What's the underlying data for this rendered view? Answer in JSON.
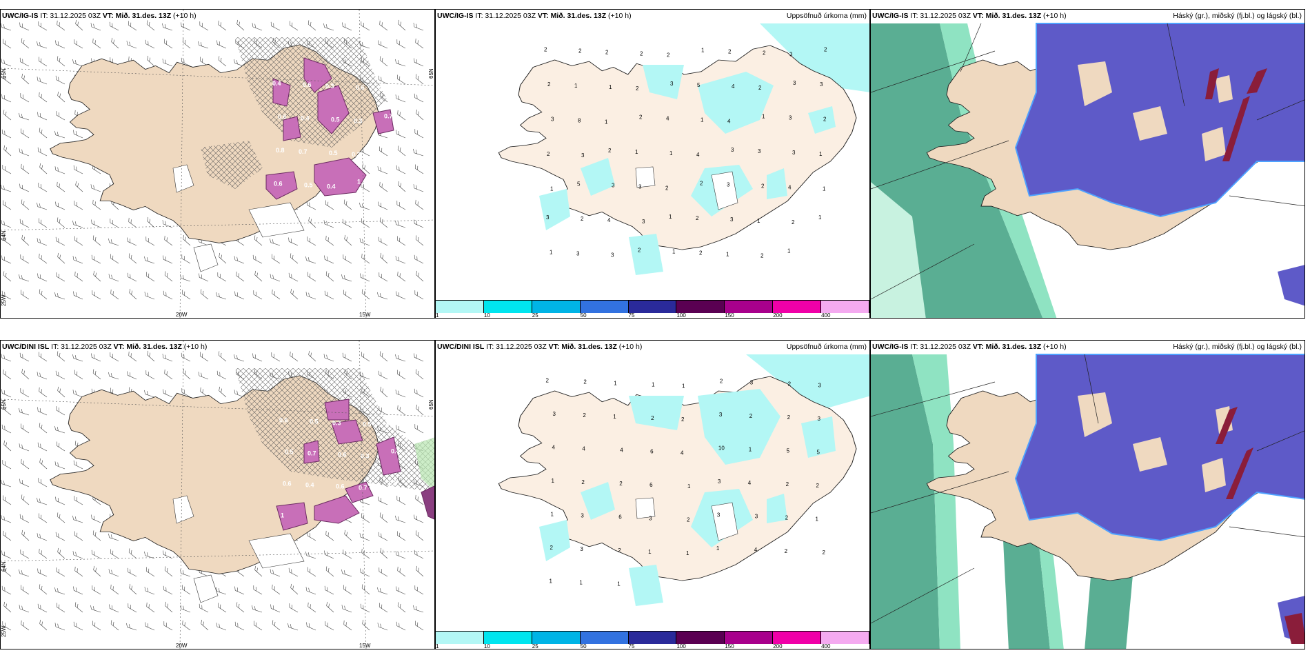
{
  "colors": {
    "land": "#efd9c0",
    "snow_land": "#fbefe3",
    "precip_light": "#b3f7f5",
    "purple": "#c86fb8",
    "high_cloud": "#5e5ac8",
    "mid_cloud": "#5aae93",
    "low_cloud": "#8fe3c2",
    "dark_red": "#8a1d3a"
  },
  "row1": {
    "wind_panel": {
      "model": "UWC/IG-IS",
      "it": "IT: 31.12.2025 03Z",
      "vt": "VT: Mið. 31.des. 13Z",
      "lead": "(+10 h)",
      "lat_labels": [
        "65N",
        "64N",
        "25W"
      ],
      "lon_labels": [
        "20W",
        "15W"
      ],
      "values": [
        "0.4",
        "0.6",
        "0.3",
        "0.6",
        "0.7",
        "0.6",
        "0.4",
        "0.5",
        "0.3",
        "0.7",
        "0.8",
        "0.7",
        "0.5",
        "0.3",
        "0.7",
        "0.6",
        "0.5",
        "0.4",
        "1"
      ]
    },
    "precip_panel": {
      "model": "UWC/IG-IS",
      "it": "IT: 31.12.2025 03Z",
      "vt": "VT: Mið. 31.des. 13Z",
      "lead": "(+10 h)",
      "right_title": "Uppsöfnuð úrkoma (mm)",
      "values": [
        "2",
        "2",
        "2",
        "2",
        "2",
        "1",
        "2",
        "2",
        "3",
        "2",
        "2",
        "1",
        "1",
        "2",
        "3",
        "5",
        "4",
        "2",
        "3",
        "3",
        "3",
        "8",
        "1",
        "2",
        "4",
        "1",
        "4",
        "1",
        "3",
        "2",
        "2",
        "3",
        "2",
        "1",
        "1",
        "4",
        "3",
        "3",
        "3",
        "1",
        "1",
        "5",
        "3",
        "3",
        "2",
        "2",
        "3",
        "2",
        "4",
        "1",
        "3",
        "2",
        "4",
        "3",
        "1",
        "2",
        "3",
        "1",
        "2",
        "1",
        "1",
        "3",
        "3",
        "2",
        "1",
        "2",
        "1",
        "2",
        "1"
      ],
      "colorbar_ticks": [
        "1",
        "10",
        "25",
        "50",
        "75",
        "100",
        "150",
        "200",
        "400"
      ]
    },
    "cloud_panel": {
      "model": "UWC/IG-IS",
      "it": "IT: 31.12.2025 03Z",
      "vt": "VT: Mið. 31.des. 13Z",
      "lead": "(+10 h)",
      "right_title": "Háský (gr.), miðský (fj.bl.) og lágský (bl.)"
    }
  },
  "row2": {
    "wind_panel": {
      "model": "UWC/DINI ISL",
      "it": "IT: 31.12.2025 03Z",
      "vt": "VT: Mið. 31.des. 13Z",
      "lead": "(+10 h)",
      "lat_labels": [
        "65N",
        "64N",
        "25W"
      ],
      "lon_labels": [
        "20W",
        "15W"
      ],
      "values": [
        "0.6",
        "0.5",
        "0.3",
        "0.5",
        "0.8",
        "0.5",
        "0.7",
        "0.6",
        "0.3",
        "0.4",
        "0.6",
        "0.4",
        "0.6",
        "0.7",
        "0.5",
        "1"
      ]
    },
    "precip_panel": {
      "model": "UWC/DINI ISL",
      "it": "IT: 31.12.2025 03Z",
      "vt": "VT: Mið. 31.des. 13Z",
      "lead": "(+10 h)",
      "right_title": "Uppsöfnuð úrkoma (mm)",
      "values": [
        "2",
        "2",
        "1",
        "1",
        "1",
        "2",
        "3",
        "2",
        "3",
        "3",
        "2",
        "1",
        "2",
        "2",
        "3",
        "2",
        "2",
        "3",
        "4",
        "4",
        "4",
        "6",
        "4",
        "10",
        "1",
        "5",
        "5",
        "1",
        "2",
        "2",
        "6",
        "1",
        "3",
        "4",
        "2",
        "2",
        "1",
        "3",
        "6",
        "3",
        "2",
        "3",
        "3",
        "2",
        "1",
        "2",
        "3",
        "2",
        "1",
        "1",
        "1",
        "4",
        "2",
        "2",
        "1",
        "1",
        "1"
      ],
      "colorbar_ticks": [
        "1",
        "10",
        "25",
        "50",
        "75",
        "100",
        "150",
        "200",
        "400"
      ]
    },
    "cloud_panel": {
      "model": "UWC/IG-IS",
      "it": "IT: 31.12.2025 03Z",
      "vt": "VT: Mið. 31.des. 13Z",
      "lead": "(+10 h)",
      "right_title": "Háský (gr.), miðský (fj.bl.) og lágský (bl.)"
    }
  },
  "colorbar_colors": [
    "#b3f7f5",
    "#00e5ef",
    "#00b4e6",
    "#3272e0",
    "#2a2a9a",
    "#5a0052",
    "#a8008c",
    "#f000a8",
    "#f4aaf0"
  ]
}
